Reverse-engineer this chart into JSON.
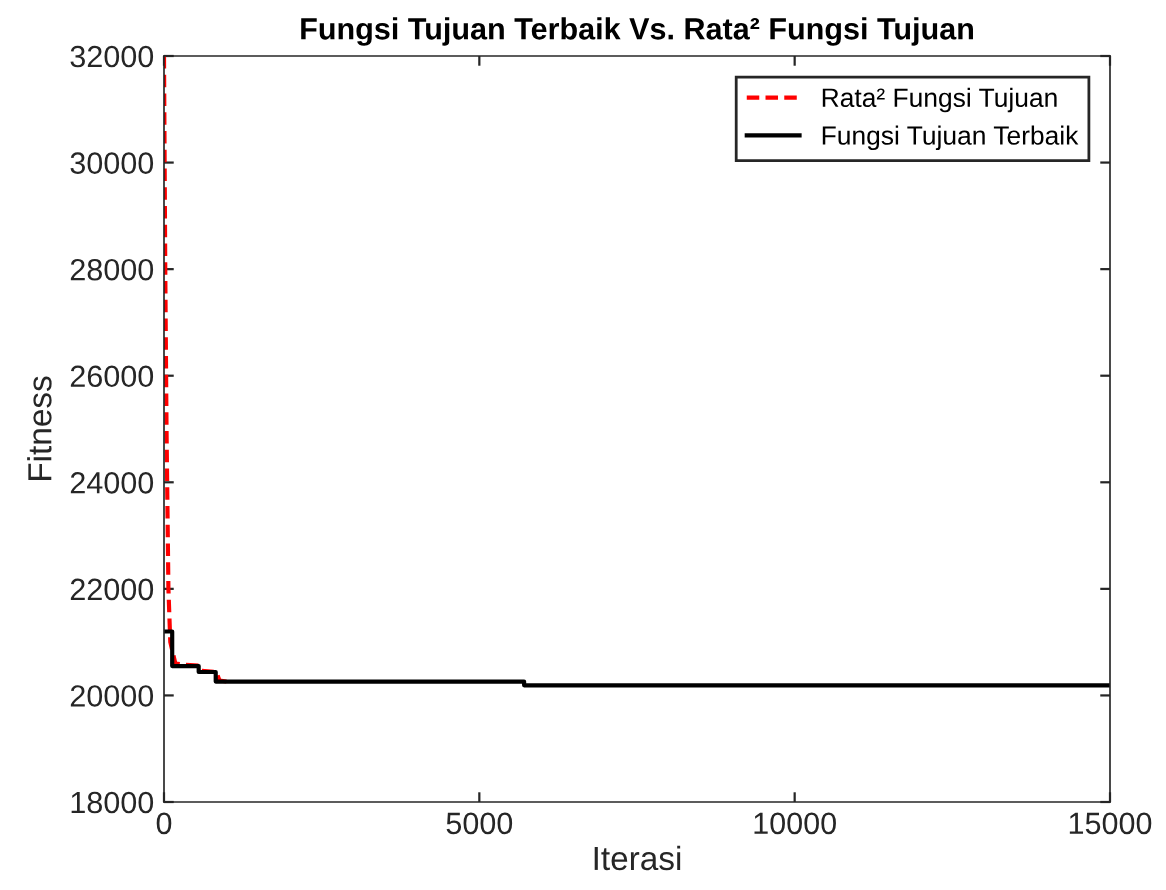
{
  "chart_data": {
    "type": "line",
    "title": "Fungsi Tujuan Terbaik Vs. Rata² Fungsi Tujuan",
    "xlabel": "Iterasi",
    "ylabel": "Fitness",
    "series": [
      {
        "name": "Rata² Fungsi Tujuan",
        "color": "#ff0000",
        "line_style": "dashed",
        "x": [
          0,
          20,
          40,
          70,
          100,
          180,
          300,
          560,
          600,
          830,
          880,
          1000
        ],
        "values": [
          32000,
          28000,
          25000,
          22000,
          21000,
          20600,
          20580,
          20560,
          20460,
          20440,
          20280,
          20260
        ]
      },
      {
        "name": "Fungsi Tujuan Terbaik",
        "color": "#000000",
        "line_style": "solid",
        "x": [
          0,
          130,
          130,
          550,
          550,
          820,
          820,
          5710,
          5710,
          15000
        ],
        "values": [
          21200,
          21200,
          20550,
          20550,
          20440,
          20440,
          20260,
          20260,
          20190,
          20190
        ]
      }
    ],
    "xlim": [
      0,
      15000
    ],
    "xticks": [
      0,
      5000,
      10000,
      15000
    ],
    "ylim": [
      18000,
      32000
    ],
    "yticks": [
      18000,
      20000,
      22000,
      24000,
      26000,
      28000,
      30000,
      32000
    ],
    "grid": false,
    "legend": "top right"
  }
}
